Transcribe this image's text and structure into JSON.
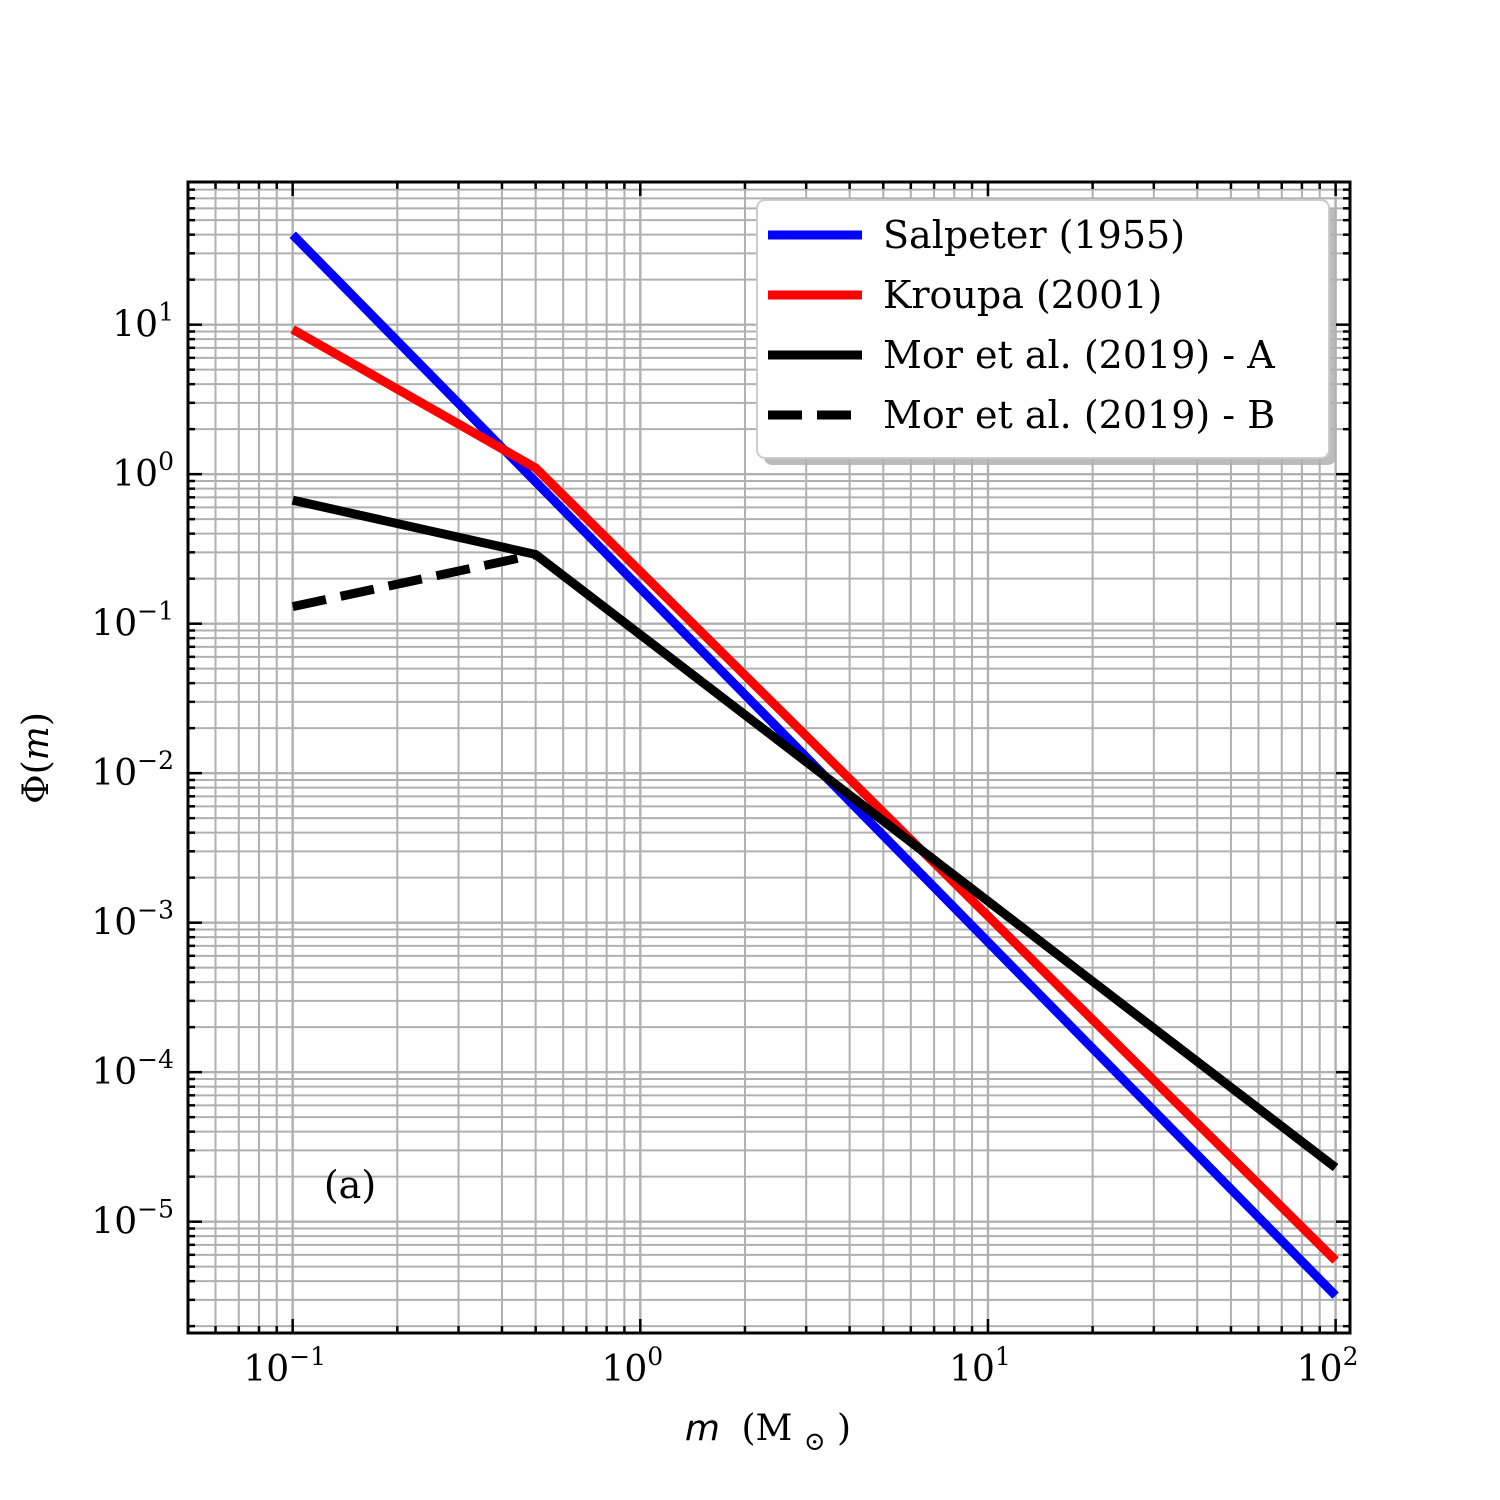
{
  "chart_data": {
    "type": "line",
    "xscale": "log",
    "yscale": "log",
    "xlim": [
      0.05,
      110
    ],
    "ylim": [
      1.8e-06,
      90
    ],
    "grid": true,
    "xlabel_var": "m",
    "xlabel_unit": "(M",
    "xlabel_sub": "⊙",
    "xlabel_close": ")",
    "ylabel_func": "Φ(",
    "ylabel_var": "m",
    "ylabel_close": ")",
    "x_ticks": [
      {
        "value": 0.1,
        "base": "10",
        "exp": "−1"
      },
      {
        "value": 1,
        "base": "10",
        "exp": "0"
      },
      {
        "value": 10,
        "base": "10",
        "exp": "1"
      },
      {
        "value": 100,
        "base": "10",
        "exp": "2"
      }
    ],
    "y_ticks": [
      {
        "value": 10,
        "base": "10",
        "exp": "1"
      },
      {
        "value": 1,
        "base": "10",
        "exp": "0"
      },
      {
        "value": 0.1,
        "base": "10",
        "exp": "−1"
      },
      {
        "value": 0.01,
        "base": "10",
        "exp": "−2"
      },
      {
        "value": 0.001,
        "base": "10",
        "exp": "−3"
      },
      {
        "value": 0.0001,
        "base": "10",
        "exp": "−4"
      },
      {
        "value": 1e-05,
        "base": "10",
        "exp": "−5"
      }
    ],
    "annotation": "(a)",
    "legend_position": "top-right",
    "series": [
      {
        "name": "Salpeter (1955)",
        "color": "#0000ff",
        "style": "solid",
        "x": [
          0.1,
          100
        ],
        "y": [
          40,
          3.2e-06
        ]
      },
      {
        "name": "Kroupa (2001)",
        "color": "#ff0000",
        "style": "solid",
        "x": [
          0.1,
          0.5,
          100
        ],
        "y": [
          9.3,
          1.1,
          5.5e-06
        ]
      },
      {
        "name": "Mor et al. (2019) - A",
        "color": "#000000",
        "style": "solid",
        "x": [
          0.1,
          0.5,
          100
        ],
        "y": [
          0.67,
          0.29,
          2.3e-05
        ]
      },
      {
        "name": "Mor et al. (2019) - B",
        "color": "#000000",
        "style": "dashed",
        "x": [
          0.1,
          0.5
        ],
        "y": [
          0.13,
          0.29
        ]
      }
    ]
  }
}
